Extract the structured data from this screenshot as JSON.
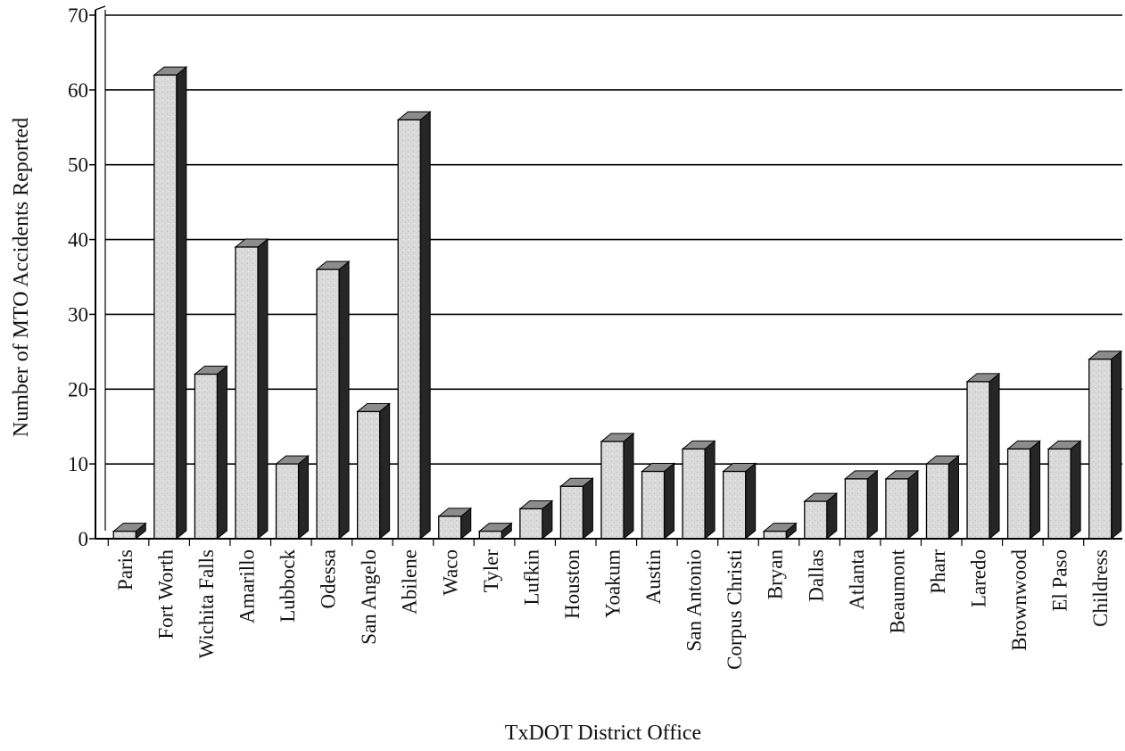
{
  "chart_data": {
    "type": "bar",
    "title": "",
    "xlabel": "TxDOT District Office",
    "ylabel": "Number of MTO Accidents Reported",
    "ylim": [
      0,
      70
    ],
    "yticks": [
      0,
      10,
      20,
      30,
      40,
      50,
      60,
      70
    ],
    "grid": true,
    "style": "3d-bar",
    "categories": [
      "Paris",
      "Fort Worth",
      "Wichita Falls",
      "Amarillo",
      "Lubbock",
      "Odessa",
      "San Angelo",
      "Abilene",
      "Waco",
      "Tyler",
      "Lufkin",
      "Houston",
      "Yoakum",
      "Austin",
      "San Antonio",
      "Corpus Christi",
      "Bryan",
      "Dallas",
      "Atlanta",
      "Beaumont",
      "Pharr",
      "Laredo",
      "Brownwood",
      "El Paso",
      "Childress"
    ],
    "values": [
      1,
      62,
      22,
      39,
      10,
      36,
      17,
      56,
      3,
      1,
      4,
      7,
      13,
      9,
      12,
      9,
      1,
      5,
      8,
      8,
      10,
      21,
      12,
      12,
      24
    ],
    "colors": {
      "bar_front": "#d9d9d9",
      "bar_side": "#262626",
      "bar_top": "#8c8c8c",
      "grid": "#000000"
    }
  }
}
